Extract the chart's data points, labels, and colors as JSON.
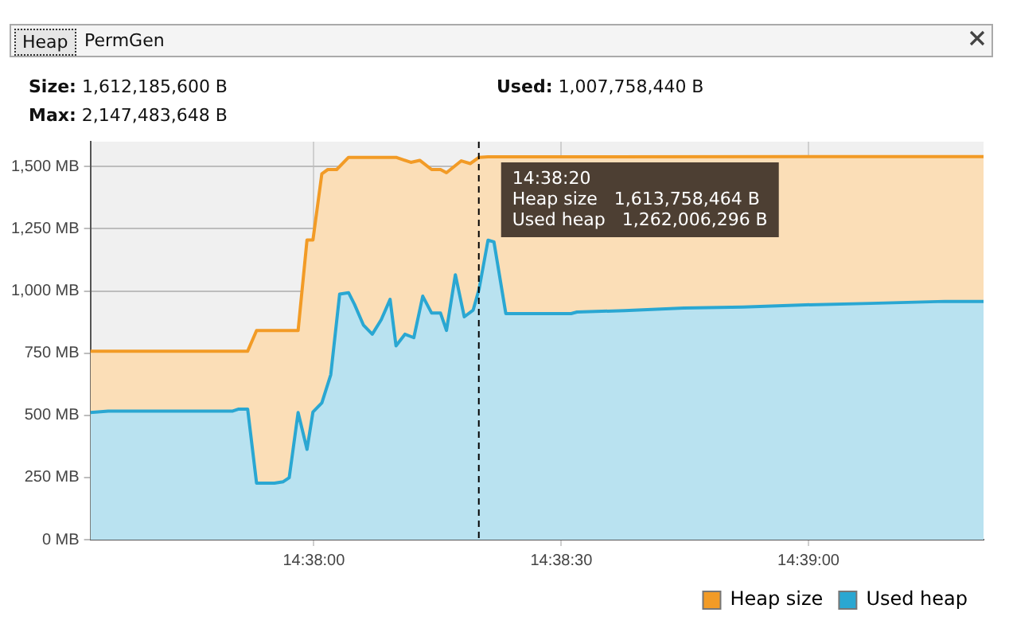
{
  "chart_data": {
    "type": "area",
    "annotations": [
      "Heap",
      "PermGen",
      "Size: 1,612,185,600 B",
      "Max: 2,147,483,648 B",
      "Used: 1,007,758,440 B",
      {
        "text": "14:38:20",
        "x": 14.63889
      },
      "Heap size   1,613,758,464 B",
      "Used heap   1,262,006,296 B"
    ],
    "series": [
      {
        "name": "Heap size",
        "color": "#f29b26",
        "x": [
          14.6258,
          14.6311,
          14.6314,
          14.6328,
          14.6331,
          14.6333,
          14.6336,
          14.6338,
          14.6341,
          14.6345,
          14.6361,
          14.6366,
          14.6369,
          14.6373,
          14.6376,
          14.6378,
          14.6383,
          14.6386,
          14.6389,
          14.6392,
          14.6559
        ],
        "values": [
          758,
          758,
          841,
          841,
          1205,
          1205,
          1471,
          1488,
          1488,
          1537,
          1537,
          1517,
          1525,
          1488,
          1488,
          1475,
          1523,
          1512,
          1537,
          1539,
          1540
        ]
      },
      {
        "name": "Used heap",
        "color": "#2aa7d2",
        "x": [
          14.6258,
          14.6264,
          14.6306,
          14.6308,
          14.6311,
          14.6314,
          14.632,
          14.6323,
          14.6325,
          14.6328,
          14.6331,
          14.6333,
          14.6336,
          14.6339,
          14.6342,
          14.6345,
          14.6347,
          14.635,
          14.6353,
          14.6356,
          14.6359,
          14.6361,
          14.6364,
          14.6367,
          14.637,
          14.6373,
          14.6376,
          14.6378,
          14.6381,
          14.6384,
          14.6387,
          14.6389,
          14.6392,
          14.6394,
          14.6398,
          14.642,
          14.6422,
          14.6438,
          14.6458,
          14.6478,
          14.6499,
          14.6521,
          14.6546,
          14.6559
        ],
        "values": [
          511,
          517,
          517,
          525,
          525,
          227,
          227,
          233,
          249,
          511,
          363,
          513,
          550,
          663,
          987,
          993,
          946,
          863,
          826,
          884,
          966,
          779,
          826,
          812,
          979,
          911,
          911,
          841,
          1065,
          896,
          923,
          1008,
          1204,
          1197,
          909,
          909,
          915,
          921,
          931,
          935,
          944,
          950,
          958,
          958
        ]
      }
    ],
    "xlim": [
      14.6258,
      14.6559
    ],
    "xticks": [
      {
        "value": 14.63333,
        "label": "14:38:00"
      },
      {
        "value": 14.64167,
        "label": "14:38:30"
      },
      {
        "value": 14.65,
        "label": "14:39:00"
      }
    ],
    "ylim": [
      0,
      1600
    ],
    "yticks": [
      {
        "value": 0,
        "label": "0 MB"
      },
      {
        "value": 250,
        "label": "250 MB"
      },
      {
        "value": 500,
        "label": "500 MB"
      },
      {
        "value": 750,
        "label": "750 MB"
      },
      {
        "value": 1000,
        "label": "1,000 MB"
      },
      {
        "value": 1250,
        "label": "1,250 MB"
      },
      {
        "value": 1500,
        "label": "1,500 MB"
      }
    ],
    "ref_lines": [
      {
        "axis": "x",
        "value": 14.63889,
        "color": "#000000",
        "line_style": "dashed"
      }
    ],
    "grid": true,
    "legend": "bottom right",
    "marker": "none",
    "line_style": "solid"
  }
}
